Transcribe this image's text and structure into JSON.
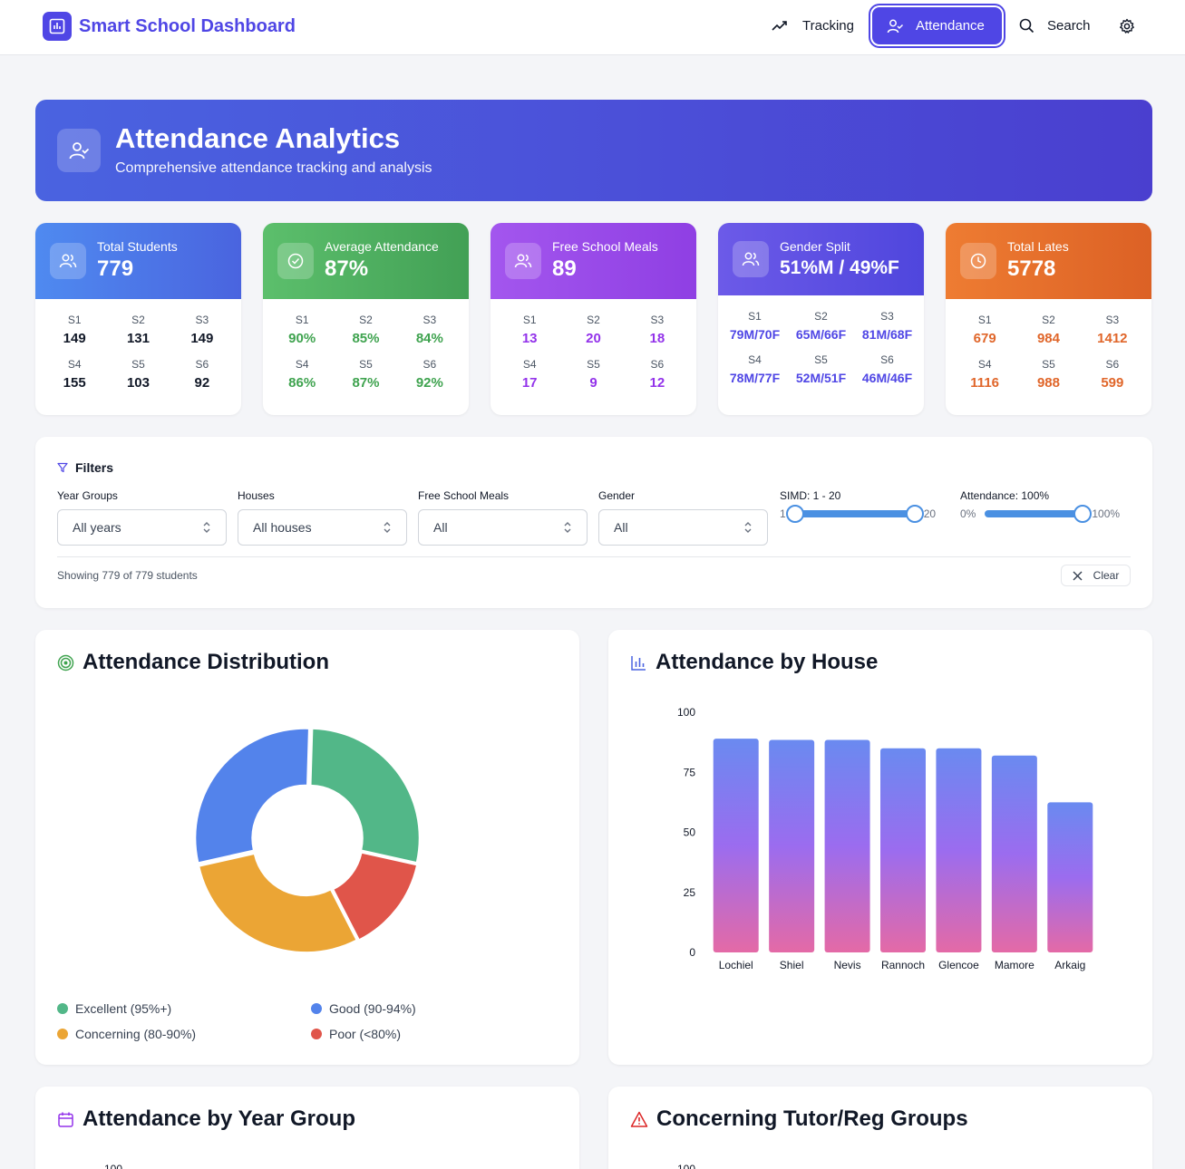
{
  "nav": {
    "brand": "Smart School Dashboard",
    "items": [
      {
        "label": "Tracking",
        "icon": "trending-up-icon"
      },
      {
        "label": "Attendance",
        "icon": "user-check-icon",
        "active": true
      },
      {
        "label": "Search",
        "icon": "search-icon"
      }
    ],
    "settings_icon": "gear-icon"
  },
  "hero": {
    "title": "Attendance Analytics",
    "subtitle": "Comprehensive attendance tracking and analysis"
  },
  "stats": [
    {
      "label": "Total Students",
      "value": "779",
      "icon": "users-icon",
      "breakdown": [
        {
          "k": "S1",
          "v": "149"
        },
        {
          "k": "S2",
          "v": "131"
        },
        {
          "k": "S3",
          "v": "149"
        },
        {
          "k": "S4",
          "v": "155"
        },
        {
          "k": "S5",
          "v": "103"
        },
        {
          "k": "S6",
          "v": "92"
        }
      ]
    },
    {
      "label": "Average Attendance",
      "value": "87%",
      "icon": "check-circle-icon",
      "breakdown": [
        {
          "k": "S1",
          "v": "90%"
        },
        {
          "k": "S2",
          "v": "85%"
        },
        {
          "k": "S3",
          "v": "84%"
        },
        {
          "k": "S4",
          "v": "86%"
        },
        {
          "k": "S5",
          "v": "87%"
        },
        {
          "k": "S6",
          "v": "92%"
        }
      ]
    },
    {
      "label": "Free School Meals",
      "value": "89",
      "icon": "users-icon",
      "breakdown": [
        {
          "k": "S1",
          "v": "13"
        },
        {
          "k": "S2",
          "v": "20"
        },
        {
          "k": "S3",
          "v": "18"
        },
        {
          "k": "S4",
          "v": "17"
        },
        {
          "k": "S5",
          "v": "9"
        },
        {
          "k": "S6",
          "v": "12"
        }
      ]
    },
    {
      "label": "Gender Split",
      "value": "51%M / 49%F",
      "icon": "users-icon",
      "breakdown": [
        {
          "k": "S1",
          "v": "79M/70F"
        },
        {
          "k": "S2",
          "v": "65M/66F"
        },
        {
          "k": "S3",
          "v": "81M/68F"
        },
        {
          "k": "S4",
          "v": "78M/77F"
        },
        {
          "k": "S5",
          "v": "52M/51F"
        },
        {
          "k": "S6",
          "v": "46M/46F"
        }
      ]
    },
    {
      "label": "Total Lates",
      "value": "5778",
      "icon": "clock-icon",
      "breakdown": [
        {
          "k": "S1",
          "v": "679"
        },
        {
          "k": "S2",
          "v": "984"
        },
        {
          "k": "S3",
          "v": "1412"
        },
        {
          "k": "S4",
          "v": "1116"
        },
        {
          "k": "S5",
          "v": "988"
        },
        {
          "k": "S6",
          "v": "599"
        }
      ]
    }
  ],
  "filters": {
    "title": "Filters",
    "year_groups": {
      "label": "Year Groups",
      "value": "All years"
    },
    "houses": {
      "label": "Houses",
      "value": "All houses"
    },
    "fsm": {
      "label": "Free School Meals",
      "value": "All"
    },
    "gender": {
      "label": "Gender",
      "value": "All"
    },
    "simd": {
      "label": "SIMD: 1 - 20",
      "min_label": "1",
      "max_label": "20",
      "low": 1,
      "high": 20
    },
    "attendance": {
      "label": "Attendance: 100%",
      "min_label": "0%",
      "max_label": "100%",
      "value": 100
    },
    "count_text": "Showing 779 of 779 students",
    "clear_label": "Clear"
  },
  "panels": {
    "distribution_title": "Attendance Distribution",
    "house_title": "Attendance by House",
    "year_title": "Attendance by Year Group",
    "tutor_title": "Concerning Tutor/Reg Groups",
    "year_first_tick": "100",
    "tutor_first_tick": "100"
  },
  "chart_data": [
    {
      "type": "pie",
      "title": "Attendance Distribution",
      "categories": [
        "Excellent (95%+)",
        "Poor (<80%)",
        "Concerning (80-90%)",
        "Good (90-94%)"
      ],
      "values": [
        28,
        14,
        29,
        29
      ],
      "colors": [
        "#52b788",
        "#e0554a",
        "#eba535",
        "#5383eb"
      ],
      "legend": [
        {
          "label": "Excellent (95%+)",
          "color": "#52b788"
        },
        {
          "label": "Good (90-94%)",
          "color": "#5383eb"
        },
        {
          "label": "Concerning (80-90%)",
          "color": "#eba535"
        },
        {
          "label": "Poor (<80%)",
          "color": "#e0554a"
        }
      ]
    },
    {
      "type": "bar",
      "title": "Attendance by House",
      "categories": [
        "Lochiel",
        "Shiel",
        "Nevis",
        "Rannoch",
        "Glencoe",
        "Mamore",
        "Arkaig"
      ],
      "values": [
        89,
        88.5,
        88.5,
        85,
        85,
        82,
        62.5
      ],
      "ylim": [
        0,
        100
      ],
      "yticks": [
        "100",
        "75",
        "50",
        "25",
        "0"
      ]
    }
  ]
}
